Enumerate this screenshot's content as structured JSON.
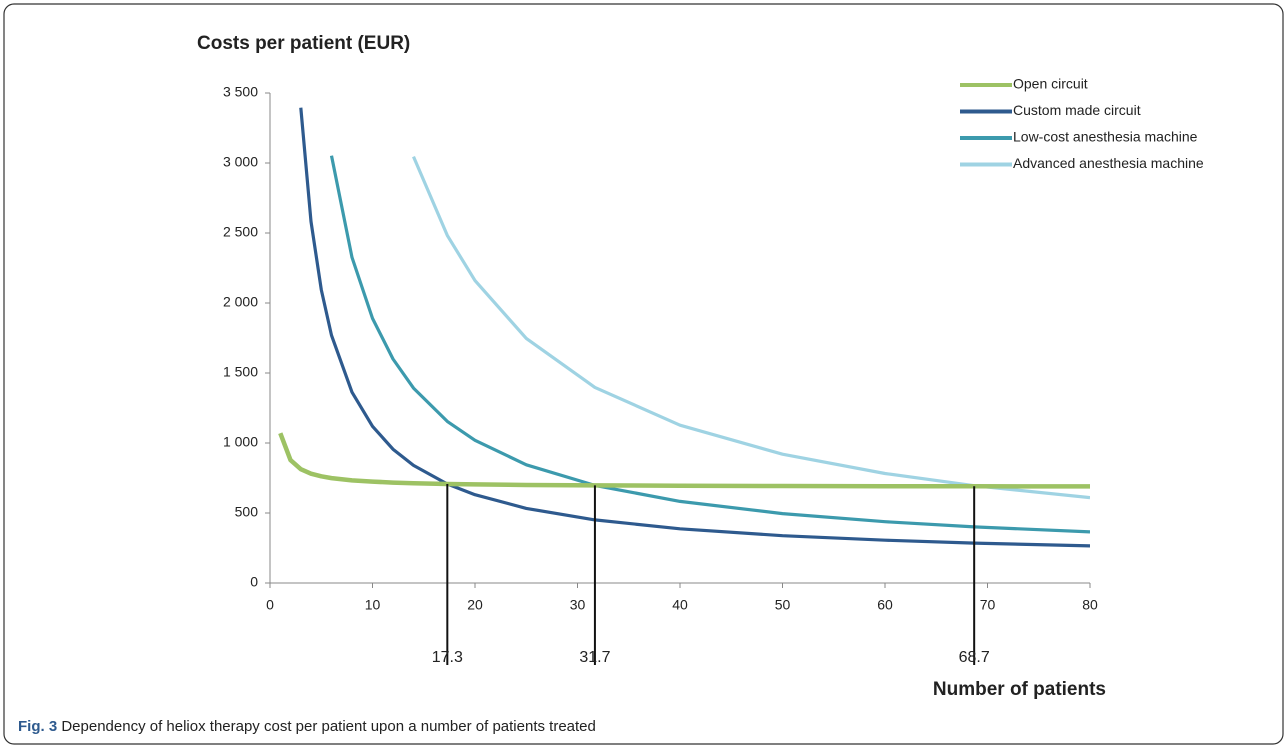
{
  "chart_data": {
    "type": "line",
    "y_title": "Costs per patient (EUR)",
    "x_title": "Number of patients",
    "caption_label": "Fig. 3",
    "caption": "Dependency of heliox therapy cost per patient upon a number of patients treated",
    "x": [
      1,
      2,
      3,
      4,
      5,
      6,
      8,
      10,
      12,
      14,
      17.3,
      20,
      25,
      31.7,
      40,
      50,
      60,
      68.7,
      80
    ],
    "series": [
      {
        "name": "Open circuit",
        "color": "#9dc264",
        "values": [
          1070,
          878,
          813,
          781,
          762,
          749,
          733,
          724,
          717,
          713,
          707,
          704,
          700,
          697,
          695,
          693,
          691,
          691,
          690
        ]
      },
      {
        "name": "Custom made circuit",
        "color": "#2e5a8e",
        "values": [
          null,
          null,
          3395,
          2582,
          2094,
          1769,
          1363,
          1119,
          956,
          840,
          707,
          631,
          533,
          451,
          387,
          338,
          306,
          285,
          265
        ]
      },
      {
        "name": "Low-cost anesthesia machine",
        "color": "#3c9aad",
        "values": [
          null,
          null,
          null,
          null,
          null,
          3052,
          2326,
          1890,
          1600,
          1392,
          1154,
          1019,
          844,
          697,
          583,
          496,
          438,
          401,
          365
        ]
      },
      {
        "name": "Advanced anesthesia machine",
        "color": "#9fd3e3",
        "values": [
          null,
          null,
          null,
          null,
          null,
          null,
          null,
          null,
          null,
          3046,
          2483,
          2160,
          1747,
          1397,
          1127,
          920,
          782,
          695,
          610
        ]
      }
    ],
    "drop_lines": [
      17.3,
      31.7,
      68.7
    ],
    "xlim": [
      0,
      80
    ],
    "xticks": [
      0,
      10,
      20,
      30,
      40,
      50,
      60,
      70,
      80
    ],
    "ylim": [
      0,
      3500
    ],
    "yticks": [
      0,
      500,
      {
        "value": 1000,
        "label": "1 000"
      },
      {
        "value": 1500,
        "label": "1 500"
      },
      {
        "value": 2000,
        "label": "2 000"
      },
      {
        "value": 2500,
        "label": "2 500"
      },
      {
        "value": 3000,
        "label": "3 000"
      },
      {
        "value": 3500,
        "label": "3 500"
      }
    ],
    "legend": "top-right"
  }
}
